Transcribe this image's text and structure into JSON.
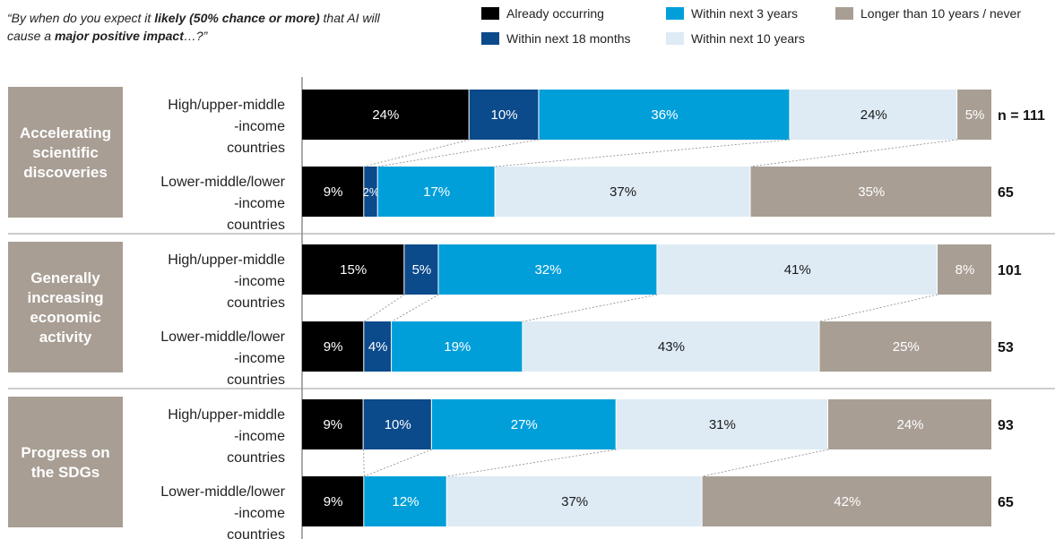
{
  "question": {
    "p1": "“By when do you expect it ",
    "p2": "likely (50% chance or more)",
    "p3": " that AI will cause a ",
    "p4": "major positive impact",
    "p5": "…?”"
  },
  "colors": {
    "already": "#000000",
    "m18": "#0b4a8b",
    "y3": "#009fda",
    "y10": "#deebf5",
    "longer": "#a89e94",
    "category_bg": "#a89e94",
    "separator": "#9a9a9a"
  },
  "chart_data": {
    "type": "bar",
    "orientation": "horizontal",
    "stacked": true,
    "normalized": true,
    "legend_position": "top-right",
    "series_names": [
      "Already occurring",
      "Within next 18 months",
      "Within next 3 years",
      "Within next 10 years",
      "Longer than 10 years / never"
    ],
    "groups": [
      {
        "category": "Accelerating scientific discoveries",
        "rows": [
          {
            "label": "High/upper-middle -income countries",
            "n": "n = 111",
            "values": [
              24,
              10,
              36,
              24,
              5
            ]
          },
          {
            "label": "Lower-middle/lower -income countries",
            "n": "65",
            "values": [
              9,
              2,
              17,
              37,
              35
            ]
          }
        ]
      },
      {
        "category": "Generally increasing economic activity",
        "rows": [
          {
            "label": "High/upper-middle -income countries",
            "n": "101",
            "values": [
              15,
              5,
              32,
              41,
              8
            ]
          },
          {
            "label": "Lower-middle/lower -income countries",
            "n": "53",
            "values": [
              9,
              4,
              19,
              43,
              25
            ]
          }
        ]
      },
      {
        "category": "Progress on the SDGs",
        "rows": [
          {
            "label": "High/upper-middle -income countries",
            "n": "93",
            "values": [
              9,
              10,
              27,
              31,
              24
            ]
          },
          {
            "label": "Lower-middle/lower -income countries",
            "n": "65",
            "values": [
              9,
              0,
              12,
              37,
              42
            ]
          }
        ]
      }
    ]
  }
}
